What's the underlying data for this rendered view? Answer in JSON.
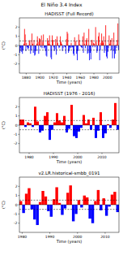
{
  "title": "El Niño 3.4 Index",
  "chart_data": [
    {
      "type": "bar",
      "title": "HADISST (Full Record)",
      "x_label": "Time (years)",
      "y_label": "(°C)",
      "colors": [
        "#ff0000",
        "#0000ff"
      ],
      "threshold": [
        -0.5,
        0.5
      ],
      "xlim": [
        1870,
        2017
      ],
      "xticks": [
        1880,
        1900,
        1920,
        1940,
        1960,
        1980,
        2000
      ],
      "ylim": [
        -3,
        3
      ],
      "yticks": [
        -2,
        -1,
        0,
        1,
        2
      ],
      "x": [
        1870,
        1871,
        1872,
        1873,
        1874,
        1875,
        1876,
        1877,
        1878,
        1879,
        1880,
        1881,
        1882,
        1883,
        1884,
        1885,
        1886,
        1887,
        1888,
        1889,
        1890,
        1891,
        1892,
        1893,
        1894,
        1895,
        1896,
        1897,
        1898,
        1899,
        1900,
        1901,
        1902,
        1903,
        1904,
        1905,
        1906,
        1907,
        1908,
        1909,
        1910,
        1911,
        1912,
        1913,
        1914,
        1915,
        1916,
        1917,
        1918,
        1919,
        1920,
        1921,
        1922,
        1923,
        1924,
        1925,
        1926,
        1927,
        1928,
        1929,
        1930,
        1931,
        1932,
        1933,
        1934,
        1935,
        1936,
        1937,
        1938,
        1939,
        1940,
        1941,
        1942,
        1943,
        1944,
        1945,
        1946,
        1947,
        1948,
        1949,
        1950,
        1951,
        1952,
        1953,
        1954,
        1955,
        1956,
        1957,
        1958,
        1959,
        1960,
        1961,
        1962,
        1963,
        1964,
        1965,
        1966,
        1967,
        1968,
        1969,
        1970,
        1971,
        1972,
        1973,
        1974,
        1975,
        1976,
        1977,
        1978,
        1979,
        1980,
        1981,
        1982,
        1983,
        1984,
        1985,
        1986,
        1987,
        1988,
        1989,
        1990,
        1991,
        1992,
        1993,
        1994,
        1995,
        1996,
        1997,
        1998,
        1999,
        2000,
        2001,
        2002,
        2003,
        2004,
        2005,
        2006,
        2007,
        2008,
        2009,
        2010,
        2011,
        2012,
        2013,
        2014,
        2015,
        2016
      ],
      "values": [
        -0.8,
        -0.3,
        -0.6,
        -0.7,
        -0.9,
        -0.5,
        0.2,
        1.8,
        1.2,
        -0.6,
        0.3,
        -0.2,
        -0.4,
        -0.3,
        0.5,
        0.6,
        -0.9,
        -0.5,
        1.3,
        0.2,
        -0.8,
        0.6,
        -1.1,
        -1.0,
        -0.6,
        0.2,
        1.0,
        0.4,
        -0.9,
        0.8,
        0.7,
        -0.2,
        1.1,
        -0.3,
        0.4,
        1.2,
        -0.3,
        -0.2,
        -0.6,
        -1.1,
        -1.2,
        0.8,
        0.5,
        0.2,
        1.1,
        0.1,
        -1.3,
        -1.5,
        1.1,
        0.6,
        -0.2,
        -0.6,
        -0.4,
        0.7,
        -1.0,
        1.0,
        0.3,
        -0.1,
        -0.3,
        -0.2,
        1.0,
        0.4,
        0.2,
        -0.6,
        -0.3,
        0.0,
        -0.1,
        -0.2,
        -0.9,
        0.7,
        1.5,
        1.3,
        -0.8,
        -0.6,
        -0.2,
        -0.3,
        0.3,
        -0.2,
        -0.2,
        -0.9,
        -1.1,
        0.9,
        -0.1,
        0.5,
        -0.9,
        -1.6,
        -0.6,
        1.2,
        0.6,
        0.1,
        -0.1,
        -0.2,
        -0.3,
        1.0,
        -0.8,
        1.4,
        0.2,
        -0.3,
        0.6,
        0.8,
        -0.9,
        -0.8,
        1.8,
        -1.6,
        -0.8,
        -1.5,
        0.6,
        0.6,
        -0.2,
        0.3,
        0.2,
        -0.2,
        2.0,
        0.4,
        -0.8,
        -0.6,
        1.0,
        1.4,
        -1.6,
        -0.5,
        0.3,
        1.3,
        0.5,
        0.3,
        1.0,
        -0.8,
        -0.4,
        2.2,
        -1.2,
        -1.4,
        -0.7,
        -0.3,
        1.1,
        0.2,
        0.6,
        -0.5,
        0.8,
        -1.4,
        -0.6,
        1.4,
        -1.4,
        -0.9,
        0.1,
        -0.3,
        0.6,
        2.4,
        -0.5
      ]
    },
    {
      "type": "bar",
      "title": "HADISST (1976 - 2016)",
      "x_label": "Time (years)",
      "y_label": "(°C)",
      "colors": [
        "#ff0000",
        "#0000ff"
      ],
      "threshold": [
        -0.5,
        0.5
      ],
      "xlim": [
        1976,
        2017
      ],
      "xticks": [
        1980,
        1990,
        2000,
        2010
      ],
      "ylim": [
        -3,
        3
      ],
      "yticks": [
        -2,
        -1,
        0,
        1,
        2
      ],
      "x": [
        1976,
        1977,
        1978,
        1979,
        1980,
        1981,
        1982,
        1983,
        1984,
        1985,
        1986,
        1987,
        1988,
        1989,
        1990,
        1991,
        1992,
        1993,
        1994,
        1995,
        1996,
        1997,
        1998,
        1999,
        2000,
        2001,
        2002,
        2003,
        2004,
        2005,
        2006,
        2007,
        2008,
        2009,
        2010,
        2011,
        2012,
        2013,
        2014,
        2015,
        2016
      ],
      "values": [
        0.6,
        0.6,
        -0.2,
        0.3,
        0.2,
        -0.2,
        2.0,
        0.4,
        -0.8,
        -0.6,
        1.0,
        1.4,
        -1.6,
        -0.5,
        0.3,
        1.3,
        0.5,
        0.3,
        1.0,
        -0.8,
        -0.4,
        2.2,
        -1.2,
        -1.4,
        -0.7,
        -0.3,
        1.1,
        0.2,
        0.6,
        -0.5,
        0.8,
        -1.4,
        -0.6,
        1.4,
        -1.4,
        -0.9,
        0.1,
        -0.3,
        0.6,
        2.4,
        -0.5
      ]
    },
    {
      "type": "bar",
      "title": "v2.LR.historical-smbb_0191",
      "x_label": "Time (years)",
      "y_label": "(°C)",
      "colors": [
        "#ff0000",
        "#0000ff"
      ],
      "threshold": [
        -0.5,
        0.5
      ],
      "xlim": [
        1979,
        2015
      ],
      "xticks": [
        1980,
        1990,
        2000,
        2010
      ],
      "ylim": [
        -3,
        3
      ],
      "yticks": [
        -2,
        -1,
        0,
        1,
        2
      ],
      "x": [
        1979,
        1980,
        1981,
        1982,
        1983,
        1984,
        1985,
        1986,
        1987,
        1988,
        1989,
        1990,
        1991,
        1992,
        1993,
        1994,
        1995,
        1996,
        1997,
        1998,
        1999,
        2000,
        2001,
        2002,
        2003,
        2004,
        2005,
        2006,
        2007,
        2008,
        2009,
        2010,
        2011,
        2012,
        2013,
        2014
      ],
      "values": [
        0.4,
        -0.9,
        1.2,
        1.8,
        -0.5,
        -1.6,
        -2.2,
        0.3,
        1.5,
        0.9,
        -0.7,
        -1.3,
        0.6,
        1.9,
        0.2,
        -1.1,
        -0.4,
        1.3,
        2.1,
        -1.8,
        -1.0,
        0.5,
        -0.3,
        1.0,
        0.8,
        -1.5,
        -2.0,
        0.4,
        1.6,
        -0.6,
        0.7,
        -1.2,
        -0.2,
        1.1,
        1.4,
        -0.8
      ]
    }
  ]
}
